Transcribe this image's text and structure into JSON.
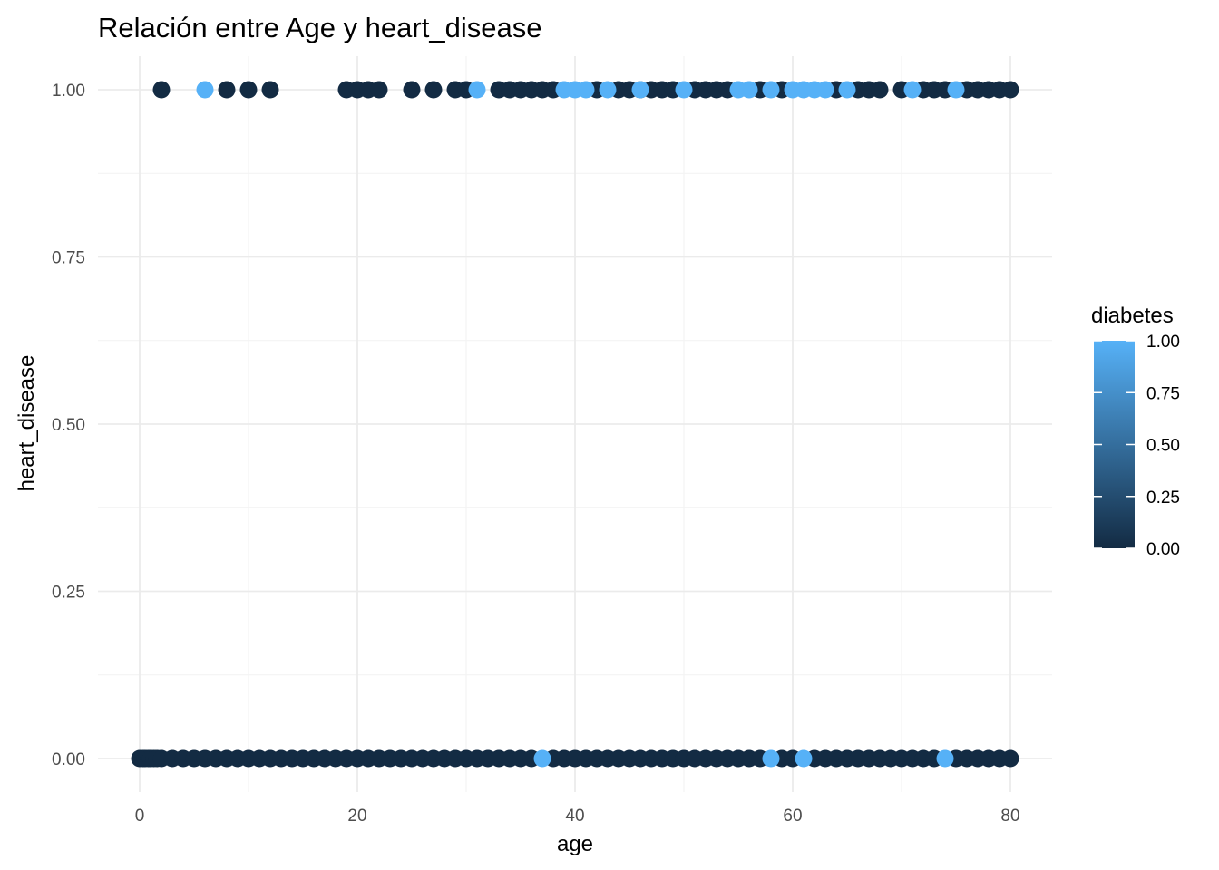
{
  "chart_data": {
    "type": "scatter",
    "title": "Relación entre Age y heart_disease",
    "xlabel": "age",
    "ylabel": "heart_disease",
    "xlim": [
      -1,
      83
    ],
    "ylim": [
      -0.05,
      1.05
    ],
    "x_ticks": [
      0,
      20,
      40,
      60,
      80
    ],
    "y_ticks": [
      0.0,
      0.25,
      0.5,
      0.75,
      1.0
    ],
    "x_tick_labels": [
      "0",
      "20",
      "40",
      "60",
      "80"
    ],
    "y_tick_labels": [
      "0.00",
      "0.25",
      "0.50",
      "0.75",
      "1.00"
    ],
    "grid": true,
    "color_scale": {
      "name": "diabetes",
      "low_color": "#132B43",
      "high_color": "#56B1F7",
      "range": [
        0,
        1
      ],
      "ticks": [
        0.0,
        0.25,
        0.5,
        0.75,
        1.0
      ],
      "tick_labels": [
        "0.00",
        "0.25",
        "0.50",
        "0.75",
        "1.00"
      ],
      "legend_position": "right"
    },
    "series": [
      {
        "heart_disease": 1,
        "diabetes_0_ages": [
          2,
          8,
          10,
          12,
          19,
          20,
          21,
          22,
          25,
          27,
          29,
          30,
          33,
          34,
          35,
          36,
          37,
          38,
          42,
          44,
          45,
          46,
          47,
          48,
          49,
          51,
          52,
          53,
          54,
          57,
          59,
          64,
          66,
          67,
          68,
          70,
          72,
          73,
          74,
          76,
          77,
          78,
          79,
          80
        ],
        "diabetes_1_ages": [
          6,
          31,
          39,
          40,
          41,
          43,
          46,
          50,
          55,
          56,
          58,
          60,
          61,
          62,
          63,
          65,
          71,
          75
        ]
      },
      {
        "heart_disease": 0,
        "diabetes_0_ages": [
          0,
          0.3,
          0.5,
          0.8,
          1,
          1.3,
          1.6,
          2,
          3,
          4,
          5,
          6,
          7,
          8,
          9,
          10,
          11,
          12,
          13,
          14,
          15,
          16,
          17,
          18,
          19,
          20,
          21,
          22,
          23,
          24,
          25,
          26,
          27,
          28,
          29,
          30,
          31,
          32,
          33,
          34,
          35,
          36,
          38,
          39,
          40,
          41,
          42,
          43,
          44,
          45,
          46,
          47,
          48,
          49,
          50,
          51,
          52,
          53,
          54,
          55,
          56,
          57,
          59,
          60,
          62,
          63,
          64,
          65,
          66,
          67,
          68,
          69,
          70,
          71,
          72,
          73,
          75,
          76,
          77,
          78,
          79,
          80
        ],
        "diabetes_1_ages": [
          37,
          58,
          61,
          74
        ]
      }
    ]
  }
}
